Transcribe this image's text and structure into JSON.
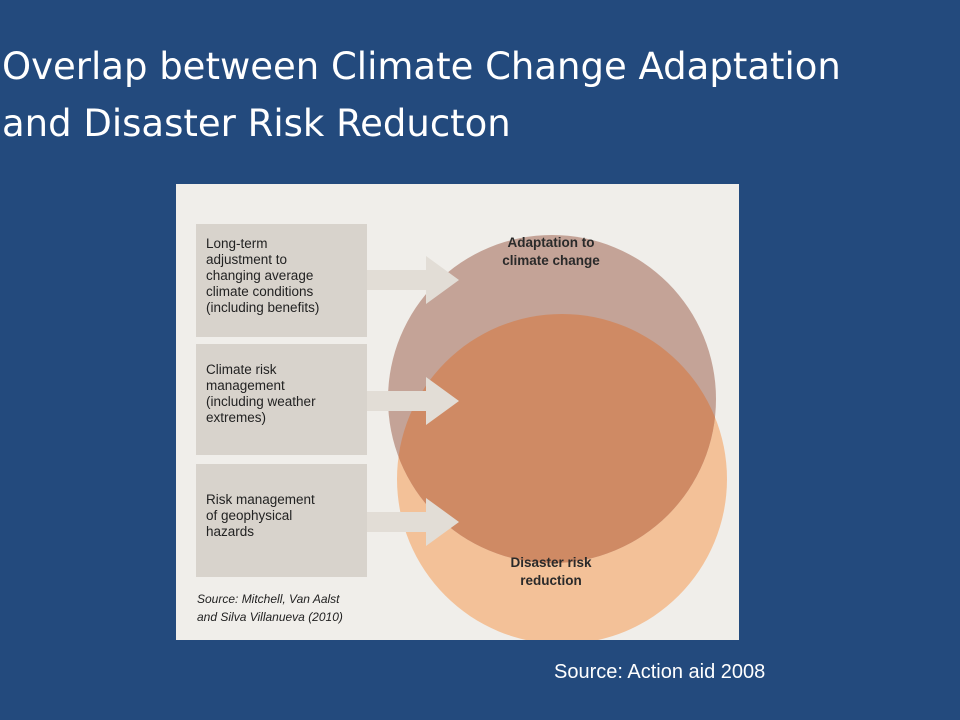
{
  "title": {
    "line1": "Overlap between Climate Change Adaptation",
    "line2": "and Disaster Risk Reducton"
  },
  "diagram": {
    "boxes": [
      [
        "Long-term",
        "adjustment to",
        "changing average",
        "climate conditions",
        "(including benefits)"
      ],
      [
        "Climate risk",
        "management",
        "(including weather",
        "extremes)"
      ],
      [
        "Risk management",
        "of geophysical",
        "hazards"
      ]
    ],
    "circles": {
      "top": [
        "Adaptation to",
        "climate change"
      ],
      "bottom": [
        "Disaster risk",
        "reduction"
      ]
    },
    "source": [
      "Source: Mitchell, Van Aalst",
      "and Silva Villanueva (2010)"
    ],
    "colors": {
      "background": "#f0eeea",
      "box_fill": "#d8d3cc",
      "arrow": "#e2ddd6",
      "adaptation_circle": "#c4a397",
      "drr_circle": "#f3c198",
      "overlap": "#cf8a64"
    }
  },
  "footer_source": "Source: Action aid 2008",
  "colors": {
    "slide_background": "#234a7d",
    "text": "#ffffff"
  }
}
